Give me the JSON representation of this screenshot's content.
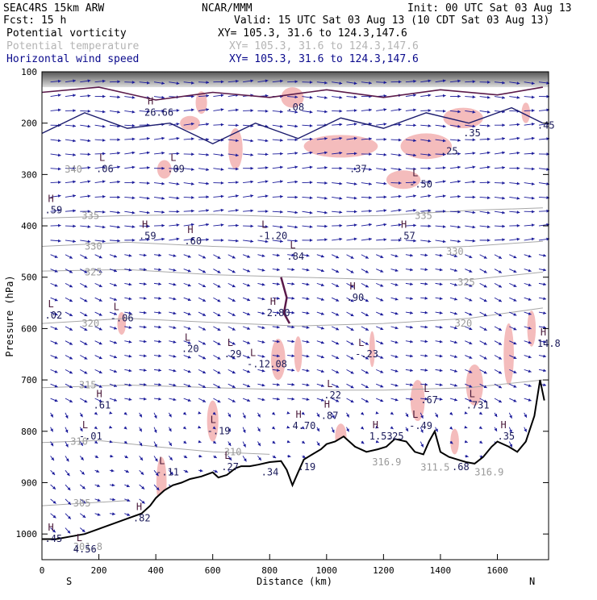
{
  "header": {
    "model": "SEAC4RS 15km ARW",
    "center": "NCAR/MMM",
    "init": "Init: 00 UTC Sat 03 Aug 13",
    "fcst": "Fcst:   15 h",
    "valid": "Valid: 15 UTC Sat 03 Aug 13 (10 CDT Sat 03 Aug 13)",
    "fields": [
      {
        "name": "Potential vorticity",
        "xy": "XY= 105.3, 31.6 to 124.3,147.6",
        "color": "#000000"
      },
      {
        "name": "Potential temperature",
        "xy": "XY= 105.3, 31.6 to 124.3,147.6",
        "color": "#b4b4b4"
      },
      {
        "name": "Horizontal wind speed",
        "xy": "XY= 105.3, 31.6 to 124.3,147.6",
        "color": "#0a0a8c"
      }
    ]
  },
  "chart_data": {
    "type": "cross-section",
    "xlabel": "Distance (km)",
    "ylabel": "Pressure (hPa)",
    "xlim": [
      0,
      1780
    ],
    "ylim": [
      1050,
      100
    ],
    "x_ticks": [
      0,
      200,
      400,
      600,
      800,
      1000,
      1200,
      1400,
      1600
    ],
    "y_ticks": [
      100,
      200,
      300,
      400,
      500,
      600,
      700,
      800,
      900,
      1000
    ],
    "x_end_labels": {
      "left": "S",
      "right": "N"
    },
    "terrain": [
      [
        0,
        1010
      ],
      [
        50,
        1010
      ],
      [
        100,
        1005
      ],
      [
        150,
        1000
      ],
      [
        200,
        990
      ],
      [
        250,
        980
      ],
      [
        300,
        970
      ],
      [
        350,
        960
      ],
      [
        380,
        945
      ],
      [
        400,
        930
      ],
      [
        430,
        915
      ],
      [
        460,
        905
      ],
      [
        490,
        900
      ],
      [
        520,
        893
      ],
      [
        560,
        888
      ],
      [
        600,
        880
      ],
      [
        620,
        890
      ],
      [
        650,
        885
      ],
      [
        680,
        872
      ],
      [
        700,
        868
      ],
      [
        730,
        868
      ],
      [
        760,
        865
      ],
      [
        800,
        860
      ],
      [
        840,
        858
      ],
      [
        860,
        875
      ],
      [
        880,
        905
      ],
      [
        900,
        880
      ],
      [
        920,
        855
      ],
      [
        950,
        845
      ],
      [
        980,
        835
      ],
      [
        1000,
        825
      ],
      [
        1030,
        820
      ],
      [
        1060,
        810
      ],
      [
        1100,
        830
      ],
      [
        1140,
        840
      ],
      [
        1180,
        835
      ],
      [
        1210,
        830
      ],
      [
        1240,
        815
      ],
      [
        1280,
        820
      ],
      [
        1310,
        840
      ],
      [
        1340,
        845
      ],
      [
        1360,
        820
      ],
      [
        1380,
        800
      ],
      [
        1400,
        840
      ],
      [
        1430,
        850
      ],
      [
        1460,
        855
      ],
      [
        1490,
        860
      ],
      [
        1520,
        863
      ],
      [
        1550,
        850
      ],
      [
        1580,
        830
      ],
      [
        1600,
        820
      ],
      [
        1640,
        830
      ],
      [
        1670,
        840
      ],
      [
        1700,
        820
      ],
      [
        1730,
        770
      ],
      [
        1750,
        700
      ],
      [
        1765,
        740
      ]
    ],
    "pv_labels": [
      {
        "hl": "H",
        "val": "26.66",
        "x": 360,
        "p": 170
      },
      {
        "hl": "L",
        "val": ".06",
        "x": 190,
        "p": 280
      },
      {
        "hl": "L",
        "val": ".09",
        "x": 440,
        "p": 280
      },
      {
        "hl": "",
        "val": ".08",
        "x": 860,
        "p": 160
      },
      {
        "hl": "",
        "val": ".37",
        "x": 1080,
        "p": 280
      },
      {
        "hl": "L",
        "val": "-.50",
        "x": 1290,
        "p": 310
      },
      {
        "hl": "",
        "val": ".25",
        "x": 1400,
        "p": 245
      },
      {
        "hl": "",
        "val": ".35",
        "x": 1480,
        "p": 210
      },
      {
        "hl": "",
        "val": ".45",
        "x": 1740,
        "p": 195
      },
      {
        "hl": "H",
        "val": ".59",
        "x": 10,
        "p": 360
      },
      {
        "hl": "H",
        "val": ".59",
        "x": 340,
        "p": 410
      },
      {
        "hl": "H",
        "val": ".60",
        "x": 500,
        "p": 420
      },
      {
        "hl": "L",
        "val": "-1.20",
        "x": 760,
        "p": 410
      },
      {
        "hl": "H",
        "val": ".57",
        "x": 1250,
        "p": 410
      },
      {
        "hl": "L",
        "val": ".84",
        "x": 860,
        "p": 450
      },
      {
        "hl": "H",
        "val": ".90",
        "x": 1070,
        "p": 530
      },
      {
        "hl": "H",
        "val": "2.80",
        "x": 790,
        "p": 560
      },
      {
        "hl": "L",
        "val": ".02",
        "x": 10,
        "p": 565
      },
      {
        "hl": "L",
        "val": "-.06",
        "x": 240,
        "p": 570
      },
      {
        "hl": "L",
        "val": ".20",
        "x": 490,
        "p": 630
      },
      {
        "hl": "L",
        "val": ".29",
        "x": 640,
        "p": 640
      },
      {
        "hl": "L",
        "val": "-.23",
        "x": 1100,
        "p": 640
      },
      {
        "hl": "H",
        "val": "14.8",
        "x": 1740,
        "p": 620
      },
      {
        "hl": "L",
        "val": "-.12",
        "x": 720,
        "p": 660
      },
      {
        "hl": "",
        "val": ".08",
        "x": 800,
        "p": 660
      },
      {
        "hl": "L",
        "val": ".22",
        "x": 990,
        "p": 720
      },
      {
        "hl": "L",
        "val": ".67",
        "x": 1330,
        "p": 730
      },
      {
        "hl": "L",
        "val": ".731",
        "x": 1490,
        "p": 740
      },
      {
        "hl": "H",
        "val": ".61",
        "x": 180,
        "p": 740
      },
      {
        "hl": "L",
        "val": "-.49",
        "x": 1290,
        "p": 780
      },
      {
        "hl": "L",
        "val": "-.19",
        "x": 580,
        "p": 790
      },
      {
        "hl": "H",
        "val": "4.70",
        "x": 880,
        "p": 780
      },
      {
        "hl": "H",
        "val": ".87",
        "x": 980,
        "p": 760
      },
      {
        "hl": "H",
        "val": "1.53",
        "x": 1150,
        "p": 800
      },
      {
        "hl": "",
        "val": ".25",
        "x": 1210,
        "p": 800
      },
      {
        "hl": "L",
        "val": "-.01",
        "x": 130,
        "p": 800
      },
      {
        "hl": "H",
        "val": ".35",
        "x": 1600,
        "p": 800
      },
      {
        "hl": "L",
        "val": "-.11",
        "x": 400,
        "p": 870
      },
      {
        "hl": "L",
        "val": ".27",
        "x": 630,
        "p": 860
      },
      {
        "hl": "",
        "val": ".34",
        "x": 770,
        "p": 870
      },
      {
        "hl": "",
        "val": ".19",
        "x": 900,
        "p": 860
      },
      {
        "hl": "",
        "val": ".68",
        "x": 1440,
        "p": 860
      },
      {
        "hl": "H",
        "val": ".82",
        "x": 320,
        "p": 960
      },
      {
        "hl": "H",
        "val": ".45",
        "x": 10,
        "p": 1000
      },
      {
        "hl": "L",
        "val": "4.56",
        "x": 110,
        "p": 1020
      }
    ],
    "theta_labels": [
      {
        "val": "340",
        "x": 80,
        "p": 290
      },
      {
        "val": "335",
        "x": 140,
        "p": 380
      },
      {
        "val": "335",
        "x": 1310,
        "p": 380
      },
      {
        "val": "330",
        "x": 150,
        "p": 440
      },
      {
        "val": "330",
        "x": 1420,
        "p": 450
      },
      {
        "val": "325",
        "x": 150,
        "p": 490
      },
      {
        "val": "325",
        "x": 1460,
        "p": 510
      },
      {
        "val": "320",
        "x": 140,
        "p": 590
      },
      {
        "val": "320",
        "x": 1450,
        "p": 590
      },
      {
        "val": "315",
        "x": 130,
        "p": 710
      },
      {
        "val": "310",
        "x": 100,
        "p": 820
      },
      {
        "val": "310",
        "x": 640,
        "p": 840
      },
      {
        "val": "305",
        "x": 110,
        "p": 940
      },
      {
        "val": "301.8",
        "x": 110,
        "p": 1025
      },
      {
        "val": "316.9",
        "x": 1160,
        "p": 860
      },
      {
        "val": "311.5",
        "x": 1330,
        "p": 870
      },
      {
        "val": "316.9",
        "x": 1520,
        "p": 880
      }
    ],
    "theta_curves": [
      {
        "val": 335,
        "pts": [
          [
            0,
            385
          ],
          [
            300,
            380
          ],
          [
            600,
            378
          ],
          [
            900,
            383
          ],
          [
            1200,
            380
          ],
          [
            1500,
            370
          ],
          [
            1760,
            365
          ]
        ]
      },
      {
        "val": 330,
        "pts": [
          [
            0,
            440
          ],
          [
            300,
            432
          ],
          [
            600,
            440
          ],
          [
            900,
            445
          ],
          [
            1200,
            445
          ],
          [
            1500,
            440
          ],
          [
            1760,
            430
          ]
        ]
      },
      {
        "val": 325,
        "pts": [
          [
            0,
            488
          ],
          [
            300,
            485
          ],
          [
            600,
            495
          ],
          [
            900,
            500
          ],
          [
            1200,
            505
          ],
          [
            1500,
            505
          ],
          [
            1760,
            490
          ]
        ]
      },
      {
        "val": 320,
        "pts": [
          [
            0,
            590
          ],
          [
            300,
            580
          ],
          [
            600,
            588
          ],
          [
            900,
            595
          ],
          [
            1200,
            590
          ],
          [
            1500,
            580
          ],
          [
            1760,
            560
          ]
        ]
      },
      {
        "val": 315,
        "pts": [
          [
            0,
            715
          ],
          [
            300,
            710
          ],
          [
            600,
            715
          ],
          [
            900,
            720
          ],
          [
            1200,
            720
          ],
          [
            1500,
            715
          ],
          [
            1760,
            700
          ]
        ]
      },
      {
        "val": 310,
        "pts": [
          [
            0,
            822
          ],
          [
            200,
            818
          ],
          [
            400,
            830
          ],
          [
            600,
            840
          ],
          [
            800,
            845
          ]
        ]
      },
      {
        "val": 305,
        "pts": [
          [
            0,
            945
          ],
          [
            150,
            940
          ],
          [
            300,
            935
          ]
        ]
      }
    ]
  }
}
